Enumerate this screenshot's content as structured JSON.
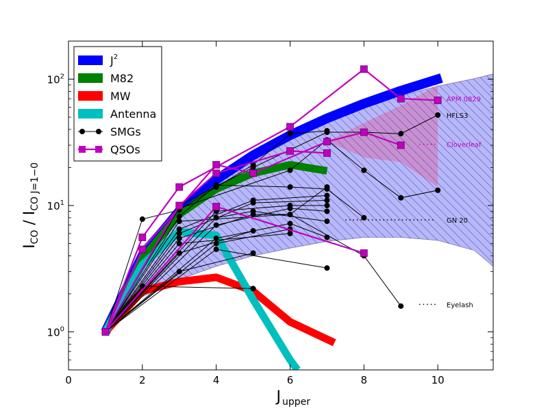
{
  "chart_data": {
    "type": "line",
    "yscale": "log",
    "xlabel_main": "J",
    "xlabel_sub": "upper",
    "ylabel_main": "I",
    "ylabel_sub1": "CO",
    "ylabel_mid": " / I",
    "ylabel_sub2": "CO J=1−0",
    "xlim": [
      0,
      11.5
    ],
    "ylim": [
      0.5,
      200
    ],
    "x_ticks": [
      {
        "value": 0,
        "label": "0"
      },
      {
        "value": 2,
        "label": "2"
      },
      {
        "value": 4,
        "label": "4"
      },
      {
        "value": 6,
        "label": "6"
      },
      {
        "value": 8,
        "label": "8"
      },
      {
        "value": 10,
        "label": "10"
      }
    ],
    "y_ticks": [
      {
        "value": 1,
        "base": "10",
        "exp": "0"
      },
      {
        "value": 10,
        "base": "10",
        "exp": "1"
      },
      {
        "value": 100,
        "base": "10",
        "exp": "2"
      }
    ],
    "colors": {
      "j2": "#0000ff",
      "m82": "#008000",
      "mw": "#ff0000",
      "antenna": "#00bfbf",
      "smg": "#000000",
      "qso": "#bf00bf",
      "band_fill": "#b3b3ff",
      "qso_band_fill": "#cc88cc"
    },
    "band": {
      "name": "SMG range (hatched)",
      "x": [
        1,
        2,
        3,
        4,
        5,
        6,
        7,
        8,
        9,
        10,
        11,
        11.5
      ],
      "upper": [
        1.0,
        4.7,
        9.8,
        16,
        25,
        36,
        48,
        61,
        74,
        88,
        101,
        110
      ],
      "lower": [
        1.0,
        1.9,
        2.6,
        3.3,
        4.0,
        4.6,
        5.2,
        5.6,
        5.6,
        5.3,
        4.4,
        3.3
      ]
    },
    "qso_band": {
      "name": "QSO range",
      "x": [
        7,
        8,
        9,
        10
      ],
      "upper": [
        32,
        45,
        62,
        90
      ],
      "lower": [
        32,
        24,
        22,
        14
      ]
    },
    "templates": [
      {
        "name": "J²",
        "key": "j2",
        "x": [
          1,
          2,
          3,
          4,
          5,
          6,
          7,
          8,
          9,
          10.1
        ],
        "y": [
          1,
          4,
          9,
          16,
          25,
          36,
          49,
          64,
          81,
          102
        ]
      },
      {
        "name": "M82",
        "key": "m82",
        "x": [
          1,
          2,
          3,
          4,
          5,
          6,
          7
        ],
        "y": [
          1,
          3.8,
          8.5,
          13.5,
          18,
          21,
          18.8
        ]
      },
      {
        "name": "MW",
        "key": "mw",
        "x": [
          1,
          2,
          3,
          4,
          5,
          6,
          7.2
        ],
        "y": [
          1,
          2.1,
          2.5,
          2.7,
          2.1,
          1.2,
          0.82
        ]
      },
      {
        "name": "Antenna",
        "key": "antenna",
        "x": [
          1,
          2,
          3,
          4,
          5,
          6,
          6.2
        ],
        "y": [
          1,
          3.4,
          6.2,
          5.8,
          1.8,
          0.6,
          0.5
        ]
      }
    ],
    "smg_series": [
      {
        "x": [
          1,
          2,
          3,
          4,
          5,
          6,
          7
        ],
        "y": [
          1,
          7.8,
          9.2,
          14,
          21,
          37,
          39
        ]
      },
      {
        "x": [
          1,
          3,
          5,
          7,
          8,
          9,
          10
        ],
        "y": [
          1,
          10,
          20,
          38,
          38,
          37,
          52
        ]
      },
      {
        "x": [
          1,
          3,
          6,
          7,
          8,
          9,
          10
        ],
        "y": [
          1,
          9.5,
          19,
          33,
          19,
          11.5,
          13.2
        ]
      },
      {
        "x": [
          1,
          3,
          4,
          6,
          7,
          8
        ],
        "y": [
          1,
          8.2,
          14.5,
          14,
          13.5,
          8
        ]
      },
      {
        "x": [
          1,
          3,
          6,
          7
        ],
        "y": [
          1,
          7.5,
          8.5,
          14
        ]
      },
      {
        "x": [
          1,
          3,
          5,
          7
        ],
        "y": [
          1,
          6.5,
          11,
          12
        ]
      },
      {
        "x": [
          1,
          3,
          5,
          7
        ],
        "y": [
          1,
          6.0,
          10.5,
          11
        ]
      },
      {
        "x": [
          1,
          4,
          6,
          7
        ],
        "y": [
          1,
          9.0,
          10,
          10
        ]
      },
      {
        "x": [
          1,
          4,
          5,
          7
        ],
        "y": [
          1,
          8.0,
          9.0,
          7.5
        ]
      },
      {
        "x": [
          1,
          4,
          6,
          7
        ],
        "y": [
          1,
          7.0,
          9.5,
          9.0
        ]
      },
      {
        "x": [
          1,
          3,
          5,
          6,
          8,
          9
        ],
        "y": [
          1,
          5.5,
          8.5,
          8.5,
          4.0,
          1.6
        ]
      },
      {
        "x": [
          1,
          4,
          6,
          7
        ],
        "y": [
          1,
          5.5,
          7.2,
          5.6
        ]
      },
      {
        "x": [
          1,
          3,
          6
        ],
        "y": [
          1,
          5.0,
          6.0
        ]
      },
      {
        "x": [
          1,
          4,
          6
        ],
        "y": [
          1,
          5.0,
          6.5
        ]
      },
      {
        "x": [
          1,
          3,
          5
        ],
        "y": [
          1,
          4.2,
          6.3
        ]
      },
      {
        "x": [
          1,
          4,
          7
        ],
        "y": [
          1,
          4.5,
          3.2
        ]
      },
      {
        "x": [
          1,
          3,
          5
        ],
        "y": [
          1,
          3.0,
          4.2
        ]
      },
      {
        "x": [
          1,
          2,
          5
        ],
        "y": [
          1,
          2.3,
          2.2
        ]
      }
    ],
    "qso_series": [
      {
        "x": [
          1,
          2,
          3,
          6,
          8,
          9,
          10
        ],
        "y": [
          1,
          5.6,
          14,
          42,
          120,
          70,
          68
        ]
      },
      {
        "x": [
          1,
          2,
          4,
          5,
          7,
          8,
          9
        ],
        "y": [
          1,
          4.5,
          21,
          18,
          32,
          38,
          30
        ]
      },
      {
        "x": [
          1,
          3,
          4,
          6,
          7
        ],
        "y": [
          1,
          10,
          18,
          27,
          26
        ]
      },
      {
        "x": [
          1,
          4,
          8
        ],
        "y": [
          1,
          9.8,
          4.2
        ]
      }
    ],
    "annotations": [
      {
        "text": "APM 0829",
        "x": 10.2,
        "y": 70,
        "key": "qso",
        "dots": false
      },
      {
        "text": "HFLS3",
        "x": 10.2,
        "y": 52,
        "key": "smg",
        "dots": false
      },
      {
        "text": "Cloverleaf",
        "x": 10.2,
        "y": 30.5,
        "key": "qso",
        "dots": true,
        "dots_from": 9.5
      },
      {
        "text": "GN 20",
        "x": 10.2,
        "y": 7.7,
        "key": "smg",
        "dots": true,
        "dots_from": 7.5
      },
      {
        "text": "Eyelash",
        "x": 10.2,
        "y": 1.65,
        "key": "smg",
        "dots": true,
        "dots_from": 9.5
      }
    ],
    "legend": {
      "placement": "top-left",
      "entries": [
        {
          "label": "J",
          "sup": "2",
          "key": "j2",
          "style": "bar"
        },
        {
          "label": "M82",
          "key": "m82",
          "style": "bar"
        },
        {
          "label": "MW",
          "key": "mw",
          "style": "bar"
        },
        {
          "label": "Antenna",
          "key": "antenna",
          "style": "bar"
        },
        {
          "label": "SMGs",
          "key": "smg",
          "style": "circle-line"
        },
        {
          "label": "QSOs",
          "key": "qso",
          "style": "square-line"
        }
      ]
    }
  }
}
